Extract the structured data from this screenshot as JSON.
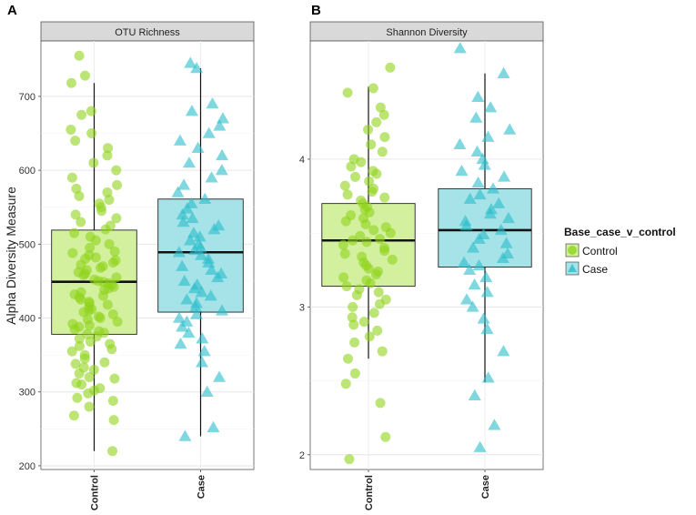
{
  "figure": {
    "ylabel": "Alpha Diversity Measure",
    "legend": {
      "title": "Base_case_v_control",
      "entries": [
        {
          "label": "Control",
          "color": "#8fd41a"
        },
        {
          "label": "Case",
          "color": "#29bdc9"
        }
      ]
    }
  },
  "chart_data": [
    {
      "type": "box",
      "panel_label": "A",
      "title": "OTU Richness",
      "categories": [
        "Control",
        "Case"
      ],
      "ylim": [
        195,
        775
      ],
      "yticks": [
        200,
        300,
        400,
        500,
        600,
        700
      ],
      "box_colors": [
        "#d3f09f",
        "#a5e3e8"
      ],
      "point_colors": [
        "#8fd41a",
        "#29bdc9"
      ],
      "boxes": [
        {
          "name": "Control",
          "min": 220,
          "q1": 378,
          "median": 449,
          "q3": 519,
          "max": 718
        },
        {
          "name": "Case",
          "min": 240,
          "q1": 408,
          "median": 489,
          "q3": 561,
          "max": 738
        }
      ],
      "points": [
        {
          "group": "Control",
          "values": [
            220,
            262,
            268,
            280,
            288,
            292,
            298,
            302,
            305,
            310,
            312,
            318,
            320,
            325,
            330,
            333,
            338,
            340,
            345,
            350,
            355,
            358,
            362,
            365,
            368,
            372,
            375,
            378,
            380,
            382,
            385,
            388,
            390,
            392,
            395,
            398,
            400,
            402,
            405,
            408,
            410,
            412,
            415,
            418,
            420,
            422,
            425,
            428,
            430,
            432,
            435,
            438,
            440,
            442,
            445,
            447,
            449,
            450,
            452,
            455,
            458,
            460,
            462,
            465,
            468,
            470,
            472,
            475,
            478,
            480,
            482,
            485,
            488,
            490,
            495,
            500,
            505,
            510,
            515,
            520,
            525,
            530,
            535,
            540,
            545,
            550,
            555,
            560,
            565,
            570,
            575,
            580,
            590,
            600,
            610,
            620,
            630,
            640,
            650,
            655,
            675,
            680,
            718,
            728,
            755
          ]
        },
        {
          "group": "Case",
          "values": [
            240,
            252,
            300,
            320,
            340,
            355,
            365,
            372,
            380,
            388,
            395,
            400,
            405,
            410,
            415,
            420,
            425,
            430,
            435,
            440,
            445,
            450,
            455,
            460,
            465,
            470,
            475,
            480,
            485,
            489,
            492,
            495,
            500,
            505,
            510,
            515,
            520,
            525,
            530,
            535,
            540,
            548,
            555,
            561,
            570,
            580,
            590,
            600,
            610,
            620,
            630,
            640,
            650,
            660,
            670,
            680,
            690,
            738,
            745
          ]
        }
      ]
    },
    {
      "type": "box",
      "panel_label": "B",
      "title": "Shannon Diversity",
      "categories": [
        "Control",
        "Case"
      ],
      "ylim": [
        1.9,
        4.8
      ],
      "yticks": [
        2,
        3,
        4
      ],
      "box_colors": [
        "#d3f09f",
        "#a5e3e8"
      ],
      "point_colors": [
        "#8fd41a",
        "#29bdc9"
      ],
      "boxes": [
        {
          "name": "Control",
          "min": 2.65,
          "q1": 3.14,
          "median": 3.45,
          "q3": 3.7,
          "max": 4.49
        },
        {
          "name": "Case",
          "min": 2.49,
          "q1": 3.27,
          "median": 3.52,
          "q3": 3.8,
          "max": 4.58
        }
      ],
      "points": [
        {
          "group": "Control",
          "values": [
            1.97,
            2.12,
            2.35,
            2.48,
            2.55,
            2.65,
            2.7,
            2.76,
            2.8,
            2.84,
            2.88,
            2.9,
            2.93,
            2.96,
            3.0,
            3.02,
            3.05,
            3.08,
            3.1,
            3.12,
            3.14,
            3.16,
            3.18,
            3.2,
            3.22,
            3.24,
            3.26,
            3.28,
            3.3,
            3.32,
            3.34,
            3.36,
            3.38,
            3.4,
            3.42,
            3.44,
            3.45,
            3.46,
            3.48,
            3.5,
            3.52,
            3.54,
            3.56,
            3.58,
            3.6,
            3.62,
            3.64,
            3.66,
            3.68,
            3.7,
            3.72,
            3.74,
            3.76,
            3.78,
            3.8,
            3.82,
            3.85,
            3.88,
            3.9,
            3.92,
            3.95,
            3.98,
            4.0,
            4.05,
            4.1,
            4.15,
            4.2,
            4.25,
            4.3,
            4.35,
            4.45,
            4.48,
            4.62
          ]
        },
        {
          "group": "Case",
          "values": [
            2.05,
            2.2,
            2.4,
            2.52,
            2.7,
            2.85,
            2.92,
            3.0,
            3.05,
            3.1,
            3.15,
            3.2,
            3.25,
            3.28,
            3.3,
            3.33,
            3.36,
            3.4,
            3.43,
            3.46,
            3.49,
            3.52,
            3.55,
            3.58,
            3.6,
            3.63,
            3.66,
            3.7,
            3.73,
            3.76,
            3.8,
            3.84,
            3.88,
            3.92,
            3.96,
            4.0,
            4.05,
            4.1,
            4.15,
            4.2,
            4.28,
            4.35,
            4.42,
            4.58,
            4.75
          ]
        }
      ]
    }
  ]
}
